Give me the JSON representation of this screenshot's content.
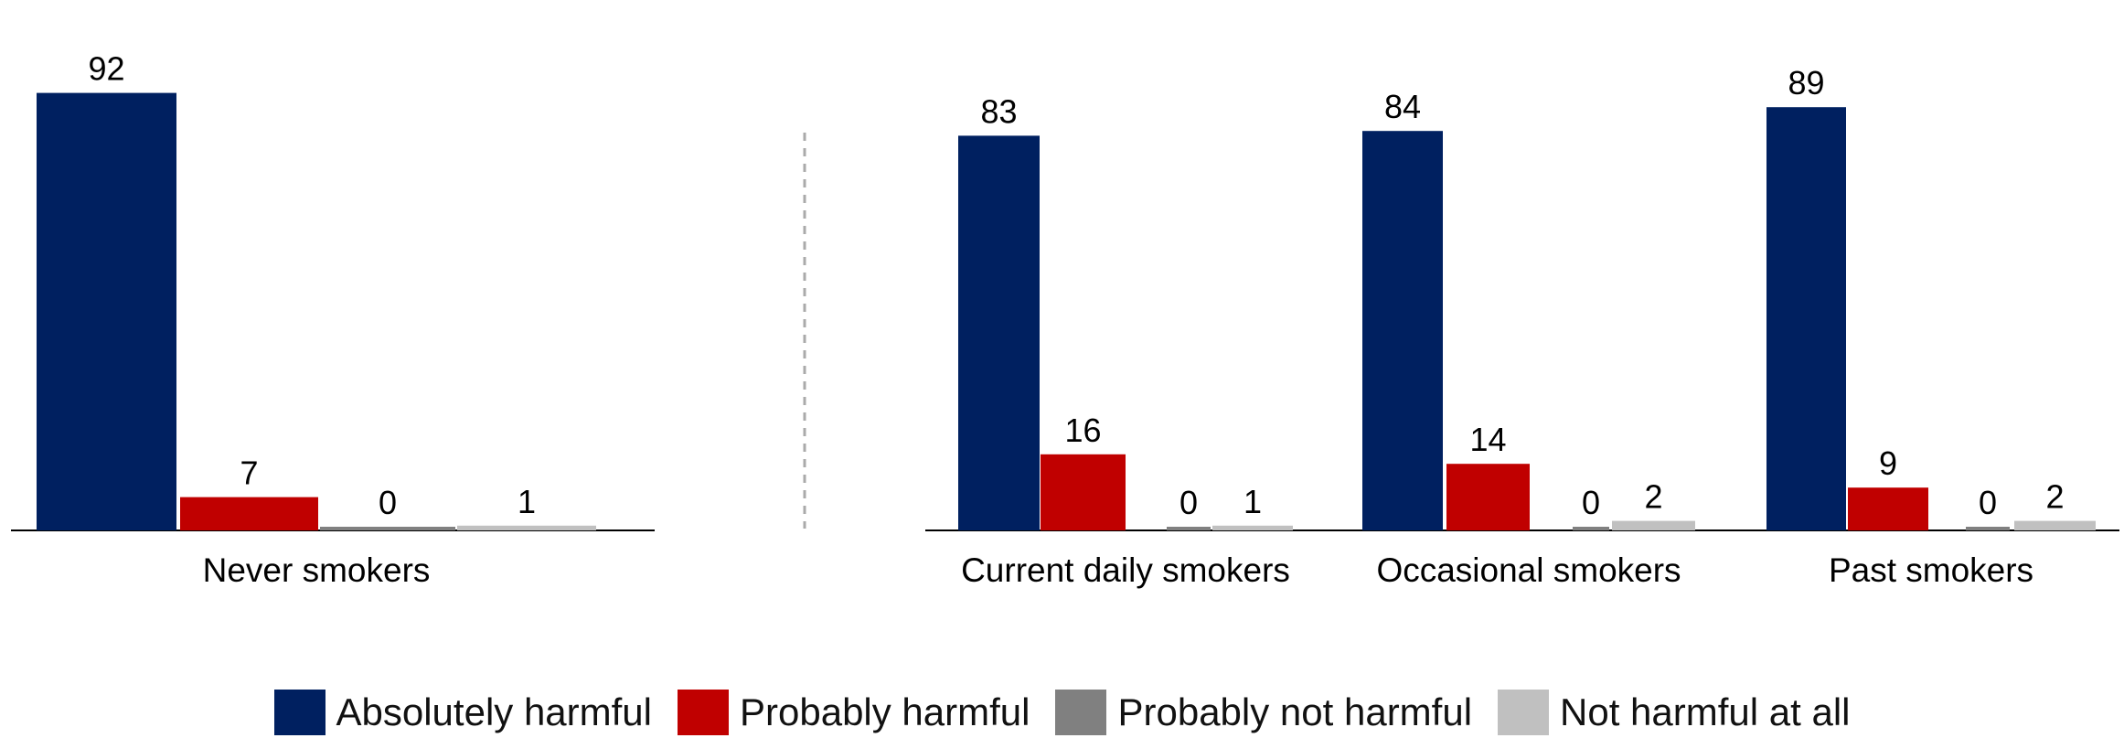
{
  "chart_data": {
    "type": "bar",
    "categories": [
      "Never smokers",
      "Current daily smokers",
      "Occasional smokers",
      "Past smokers"
    ],
    "series": [
      {
        "name": "Absolutely harmful",
        "color": "#002060",
        "values": [
          92,
          83,
          84,
          89
        ]
      },
      {
        "name": "Probably harmful",
        "color": "#C00000",
        "values": [
          7,
          16,
          14,
          9
        ]
      },
      {
        "name": "Probably not harmful",
        "color": "#808080",
        "values": [
          0,
          0,
          0,
          0
        ]
      },
      {
        "name": "Not harmful at all",
        "color": "#C0C0C0",
        "values": [
          1,
          1,
          2,
          2
        ]
      }
    ],
    "legend_position": "bottom",
    "grid": false
  }
}
